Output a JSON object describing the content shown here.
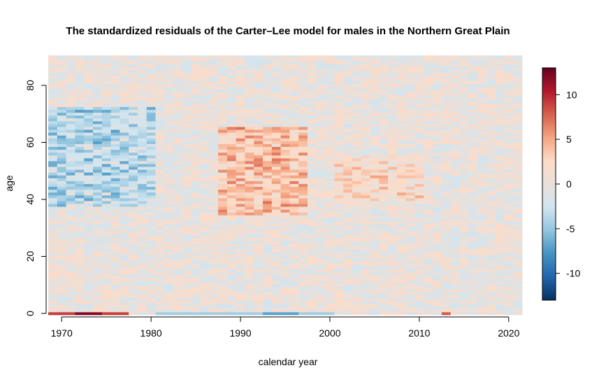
{
  "chart_data": {
    "type": "heatmap",
    "title": "The standardized residuals of the Carter–Lee model for males in the Northern Great Plain",
    "xlabel": "calendar year",
    "ylabel": "age",
    "xlim": [
      1969,
      2021
    ],
    "ylim": [
      0,
      90
    ],
    "x_ticks": [
      1970,
      1980,
      1990,
      2000,
      2010,
      2020
    ],
    "y_ticks": [
      0,
      20,
      40,
      60,
      80
    ],
    "x_tick_labels": [
      "1970",
      "1980",
      "1990",
      "2000",
      "2010",
      "2020"
    ],
    "y_tick_labels": [
      "0",
      "20",
      "40",
      "60",
      "80"
    ],
    "years": {
      "start": 1969,
      "end": 2021
    },
    "ages": {
      "start": 0,
      "end": 90
    },
    "value_range": [
      -13,
      13
    ],
    "colorbar": {
      "ticks": [
        10,
        5,
        0,
        -5,
        -10
      ],
      "tick_labels": [
        "10",
        "5",
        "0",
        "-5",
        "-10"
      ],
      "colors": [
        "#67001F",
        "#B2182B",
        "#D6604D",
        "#F4A582",
        "#FDDBC7",
        "#EAE0DA",
        "#D1E5F0",
        "#92C5DE",
        "#4393C3",
        "#2166AC",
        "#053061"
      ]
    },
    "residual_pattern": [
      {
        "years": [
          1969,
          1980
        ],
        "ages": [
          38,
          72
        ],
        "mean_residual": -3.5
      },
      {
        "years": [
          1969,
          1977
        ],
        "ages": [
          0,
          0
        ],
        "mean_residual": 9
      },
      {
        "years": [
          1972,
          1974
        ],
        "ages": [
          0,
          0
        ],
        "mean_residual": 12
      },
      {
        "years": [
          1981,
          2000
        ],
        "ages": [
          0,
          0
        ],
        "mean_residual": -4.5
      },
      {
        "years": [
          1993,
          1996
        ],
        "ages": [
          0,
          0
        ],
        "mean_residual": -7
      },
      {
        "years": [
          1988,
          1997
        ],
        "ages": [
          35,
          65
        ],
        "mean_residual": 3.5
      },
      {
        "years": [
          2001,
          2010
        ],
        "ages": [
          40,
          55
        ],
        "mean_residual": 2
      },
      {
        "years": [
          2013,
          2013
        ],
        "ages": [
          0,
          0
        ],
        "mean_residual": 8
      }
    ]
  }
}
